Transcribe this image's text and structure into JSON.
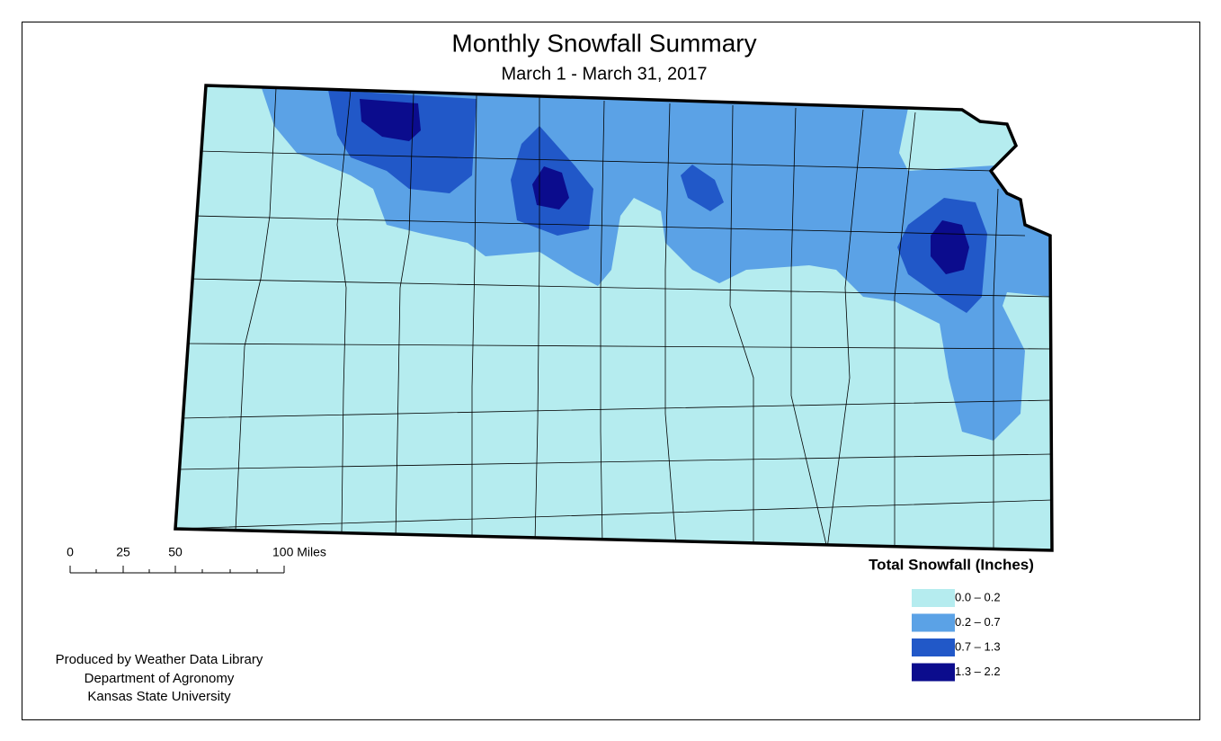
{
  "title": "Monthly Snowfall Summary",
  "subtitle": "March 1 - March 31, 2017",
  "scale_bar": {
    "labels": [
      "0",
      "25",
      "50",
      "100 Miles"
    ]
  },
  "legend": {
    "title": "Total Snowfall (Inches)",
    "items": [
      {
        "label": "0.0 – 0.2",
        "color": "#b5ecef"
      },
      {
        "label": "0.2 – 0.7",
        "color": "#5ba2e6"
      },
      {
        "label": "0.7 – 1.3",
        "color": "#2158c8"
      },
      {
        "label": "1.3 – 2.2",
        "color": "#0b0c8d"
      }
    ]
  },
  "credits": [
    "Produced by Weather Data Library",
    "Department of Agronomy",
    "Kansas State University"
  ]
}
